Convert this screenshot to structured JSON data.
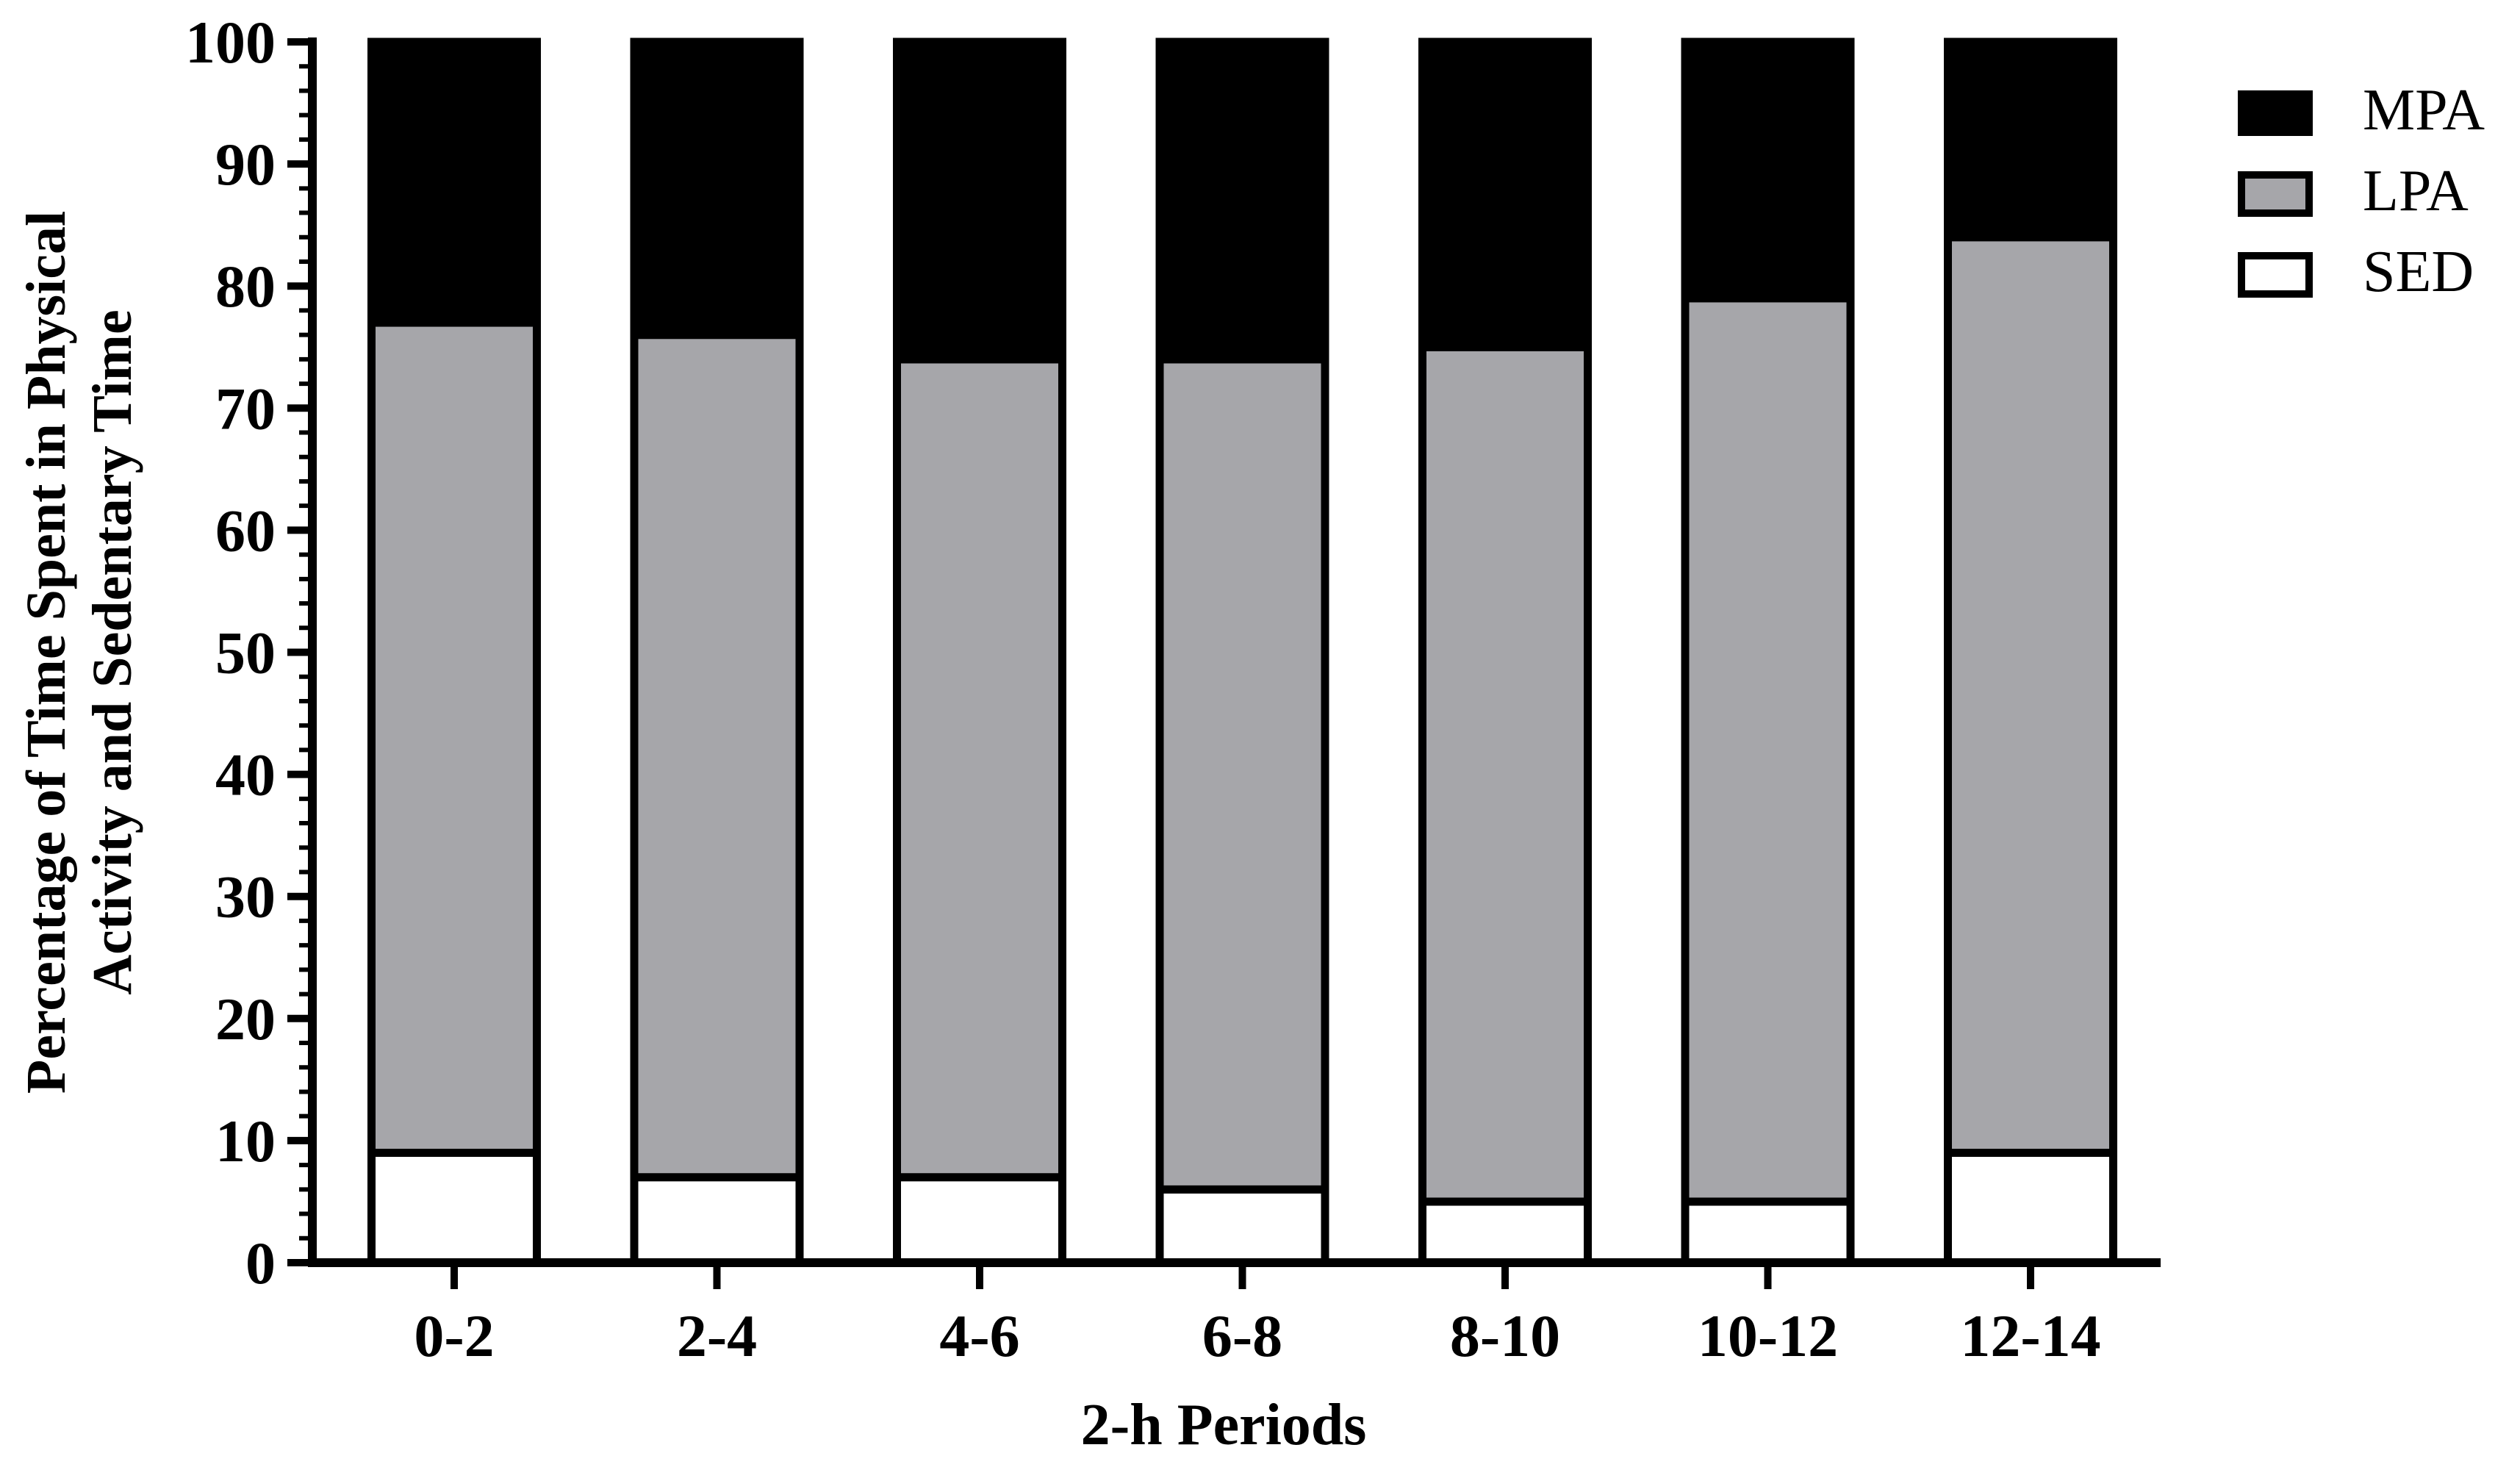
{
  "chart_data": {
    "type": "bar",
    "stacked": true,
    "percent_scale": true,
    "categories": [
      "0-2",
      "2-4",
      "4-6",
      "6-8",
      "8-10",
      "10-12",
      "12-14"
    ],
    "series": [
      {
        "name": "SED",
        "color": "#ffffff",
        "values": [
          9,
          7,
          7,
          6,
          5,
          5,
          9
        ]
      },
      {
        "name": "LPA",
        "color": "#a6a6aa",
        "values": [
          68,
          69,
          67,
          68,
          70,
          74,
          75
        ]
      },
      {
        "name": "MPA",
        "color": "#000000",
        "values": [
          23,
          24,
          26,
          26,
          25,
          21,
          16
        ]
      }
    ],
    "legend_order": [
      "MPA",
      "LPA",
      "SED"
    ],
    "legend_placement": "top-right",
    "xlabel": "2-h Periods",
    "ylabel": [
      "Percentage of Time Spent in Physical",
      "Activity and Sedentary Time"
    ],
    "ylim": [
      0,
      100
    ],
    "yticks": [
      0,
      10,
      20,
      30,
      40,
      50,
      60,
      70,
      80,
      90,
      100
    ],
    "grid": false
  }
}
